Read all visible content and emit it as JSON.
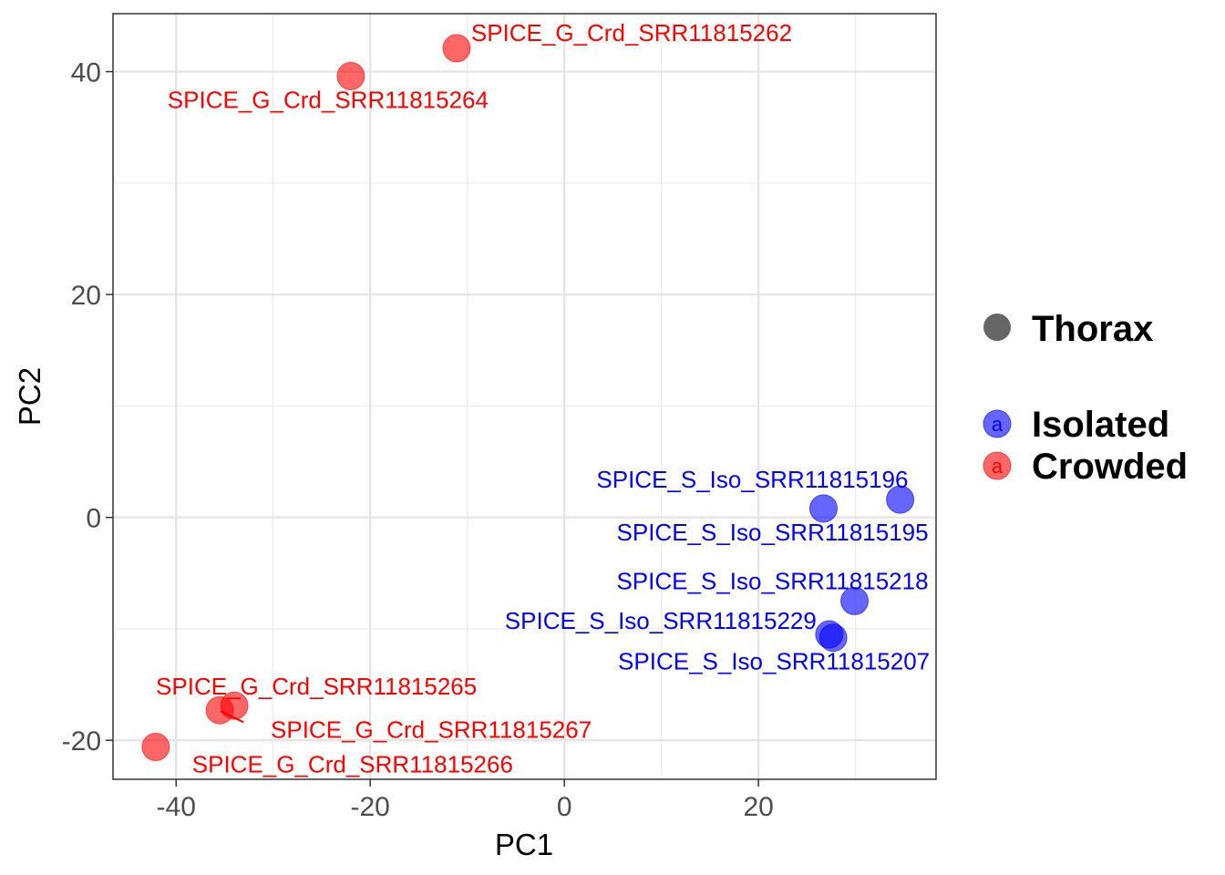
{
  "chart_data": {
    "type": "scatter",
    "title": "",
    "xlabel": "PC1",
    "ylabel": "PC2",
    "xlim": [
      -46.5,
      38.3
    ],
    "ylim": [
      -23.5,
      45.2
    ],
    "x_ticks": [
      -40,
      -20,
      0,
      20
    ],
    "x_tick_labels": [
      "-40",
      "-20",
      "0",
      "20"
    ],
    "y_ticks": [
      -20,
      0,
      20,
      40
    ],
    "y_tick_labels": [
      "-20",
      "0",
      "20",
      "40"
    ],
    "grid": true,
    "legend_position": "right",
    "shape_legend": {
      "label": "Thorax",
      "color": "#666666"
    },
    "color_legend": [
      {
        "label": "Isolated",
        "color": "#0000ff",
        "key_glyph": "a"
      },
      {
        "label": "Crowded",
        "color": "#ff0000",
        "key_glyph": "a"
      }
    ],
    "series": [
      {
        "name": "Isolated",
        "color": "#0000ff",
        "points": [
          {
            "label": "SPICE_S_Iso_SRR11815196",
            "x": 26.7,
            "y": 0.8
          },
          {
            "label": "SPICE_S_Iso_SRR11815195",
            "x": 34.6,
            "y": 1.6
          },
          {
            "label": "SPICE_S_Iso_SRR11815218",
            "x": 29.9,
            "y": -7.5
          },
          {
            "label": "SPICE_S_Iso_SRR11815229",
            "x": 27.3,
            "y": -10.5
          },
          {
            "label": "SPICE_S_Iso_SRR11815207",
            "x": 27.7,
            "y": -10.8
          }
        ]
      },
      {
        "name": "Crowded",
        "color": "#ff0000",
        "points": [
          {
            "label": "SPICE_G_Crd_SRR11815262",
            "x": -11.1,
            "y": 42.1
          },
          {
            "label": "SPICE_G_Crd_SRR11815264",
            "x": -22.0,
            "y": 39.6
          },
          {
            "label": "SPICE_G_Crd_SRR11815265",
            "x": -35.5,
            "y": -17.3
          },
          {
            "label": "SPICE_G_Crd_SRR11815267",
            "x": -34.0,
            "y": -16.9
          },
          {
            "label": "SPICE_G_Crd_SRR11815266",
            "x": -42.1,
            "y": -20.6
          }
        ]
      }
    ]
  }
}
